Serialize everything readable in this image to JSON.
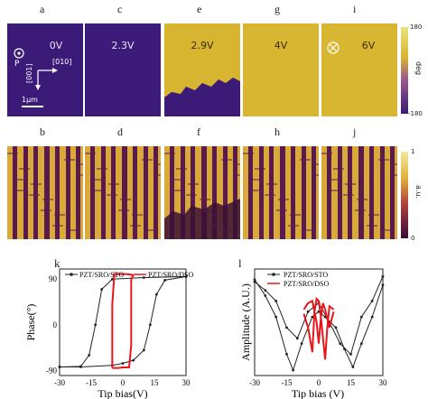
{
  "phase_row": {
    "panels": [
      {
        "letter": "a",
        "voltage": "0V"
      },
      {
        "letter": "c",
        "voltage": "2.3V"
      },
      {
        "letter": "e",
        "voltage": "2.9V"
      },
      {
        "letter": "g",
        "voltage": "4V"
      },
      {
        "letter": "i",
        "voltage": "6V"
      }
    ],
    "p_label": "P",
    "axis_001": "[001]",
    "axis_010": "[010]",
    "scale": "1μm",
    "colorbar": {
      "max": "180",
      "min": "-180",
      "title": "deg"
    }
  },
  "amp_row": {
    "letters": [
      "b",
      "d",
      "f",
      "h",
      "j"
    ],
    "colorbar": {
      "max": "1",
      "min": "0",
      "title": "a.u."
    }
  },
  "chart_data": [
    {
      "panel": "k",
      "type": "line",
      "xlabel": "Tip bias(V)",
      "ylabel": "Phase(°)",
      "x_ticks": [
        "-30",
        "-15",
        "0",
        "15",
        "30"
      ],
      "y_ticks": [
        "90",
        "0",
        "-90"
      ],
      "xlim": [
        -30,
        30
      ],
      "ylim": [
        -100,
        110
      ],
      "series": [
        {
          "name": "PZT/SRO/STO",
          "color": "#222222",
          "up": [
            [
              -30,
              -83
            ],
            [
              -20,
              -83
            ],
            [
              -5,
              -80
            ],
            [
              0,
              -76
            ],
            [
              5,
              -70
            ],
            [
              10,
              -50
            ],
            [
              13,
              0
            ],
            [
              16,
              60
            ],
            [
              20,
              88
            ],
            [
              30,
              95
            ]
          ],
          "down": [
            [
              30,
              95
            ],
            [
              10,
              93
            ],
            [
              -5,
              90
            ],
            [
              -10,
              70
            ],
            [
              -13,
              0
            ],
            [
              -16,
              -60
            ],
            [
              -20,
              -82
            ],
            [
              -30,
              -83
            ]
          ]
        },
        {
          "name": "PZT/SRO/DSO",
          "color": "#e8161a",
          "up": [
            [
              -5,
              -85
            ],
            [
              -2,
              -85
            ],
            [
              0,
              -84
            ],
            [
              1,
              -84
            ],
            [
              3,
              -84
            ],
            [
              4,
              -40
            ],
            [
              4,
              90
            ],
            [
              5,
              98
            ]
          ],
          "down": [
            [
              5,
              98
            ],
            [
              2,
              100
            ],
            [
              0,
              100
            ],
            [
              -4,
              100
            ],
            [
              -5,
              40
            ],
            [
              -5,
              -85
            ]
          ]
        }
      ]
    },
    {
      "panel": "l",
      "type": "line",
      "xlabel": "Tip bias (V)",
      "ylabel": "Amplitude (A.U.)",
      "x_ticks": [
        "-30",
        "-15",
        "0",
        "15",
        "30"
      ],
      "xlim": [
        -30,
        30
      ],
      "ylim": [
        0,
        1
      ],
      "series": [
        {
          "name": "PZT/SRO/STO",
          "color": "#222222",
          "a": [
            [
              -30,
              0.9
            ],
            [
              -25,
              0.75
            ],
            [
              -20,
              0.55
            ],
            [
              -15,
              0.2
            ],
            [
              -12,
              0.05
            ],
            [
              -8,
              0.3
            ],
            [
              -3,
              0.55
            ],
            [
              0,
              0.6
            ],
            [
              3,
              0.55
            ],
            [
              8,
              0.45
            ],
            [
              12,
              0.25
            ],
            [
              16,
              0.08
            ],
            [
              20,
              0.3
            ],
            [
              25,
              0.55
            ],
            [
              30,
              0.85
            ]
          ],
          "b": [
            [
              -30,
              0.88
            ],
            [
              -25,
              0.8
            ],
            [
              -20,
              0.7
            ],
            [
              -15,
              0.45
            ],
            [
              -10,
              0.35
            ],
            [
              -5,
              0.6
            ],
            [
              0,
              0.68
            ],
            [
              5,
              0.5
            ],
            [
              10,
              0.3
            ],
            [
              15,
              0.2
            ],
            [
              20,
              0.55
            ],
            [
              25,
              0.7
            ],
            [
              30,
              0.93
            ]
          ]
        },
        {
          "name": "PZT/SRO/DSO",
          "color": "#e8161a",
          "a": [
            [
              -7,
              0.58
            ],
            [
              -5,
              0.45
            ],
            [
              -3,
              0.22
            ],
            [
              -2,
              0.6
            ],
            [
              -1,
              0.72
            ],
            [
              0,
              0.7
            ],
            [
              1,
              0.55
            ],
            [
              2,
              0.35
            ],
            [
              3,
              0.15
            ],
            [
              4,
              0.45
            ],
            [
              5,
              0.65
            ],
            [
              7,
              0.62
            ]
          ],
          "b": [
            [
              -7,
              0.62
            ],
            [
              -5,
              0.68
            ],
            [
              -3,
              0.7
            ],
            [
              -1,
              0.5
            ],
            [
              0,
              0.3
            ],
            [
              1,
              0.55
            ],
            [
              2,
              0.68
            ],
            [
              3,
              0.62
            ],
            [
              5,
              0.45
            ],
            [
              7,
              0.6
            ]
          ]
        }
      ]
    }
  ],
  "colors": {
    "purple": "#3b1a78",
    "yellow": "#d7b531",
    "amp_dark": "#5b1a4e",
    "amp_light": "#d9a93a"
  }
}
